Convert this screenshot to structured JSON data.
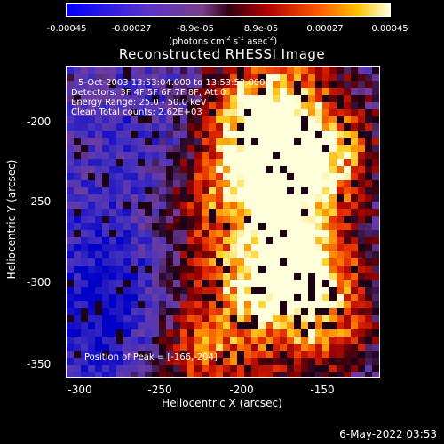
{
  "colorbar": {
    "ticks": [
      "-0.00045",
      "-0.00027",
      "-8.9e-05",
      "8.9e-05",
      "0.00027",
      "0.00045"
    ],
    "units_prefix": "(photons cm",
    "units_exp1": "-2",
    "units_mid": " s",
    "units_exp2": "-1",
    "units_mid2": " asec",
    "units_exp3": "-2",
    "units_suffix": ")"
  },
  "title": "Reconstructed RHESSI Image",
  "annotations": {
    "time": "5-Oct-2003 13:53:04.000 to 13:53:52.000",
    "detectors": "Detectors: 3F 4F 5F 6F 7F 8F, Att 0",
    "energy": "Energy Range: 25.0 - 50.0 keV",
    "method": "Clean      Total counts: 2.62E+03",
    "peak": "Position of Peak = [-166,-204]"
  },
  "axes": {
    "xlabel": "Heliocentric X (arcsec)",
    "ylabel": "Heliocentric Y (arcsec)",
    "xticks": [
      "-300",
      "-250",
      "-200",
      "-150"
    ],
    "yticks": [
      "-200",
      "-250",
      "-300",
      "-350"
    ]
  },
  "footer": "6-May-2022 03:53",
  "colors": {
    "background": "#000000",
    "text": "#ffffff"
  }
}
